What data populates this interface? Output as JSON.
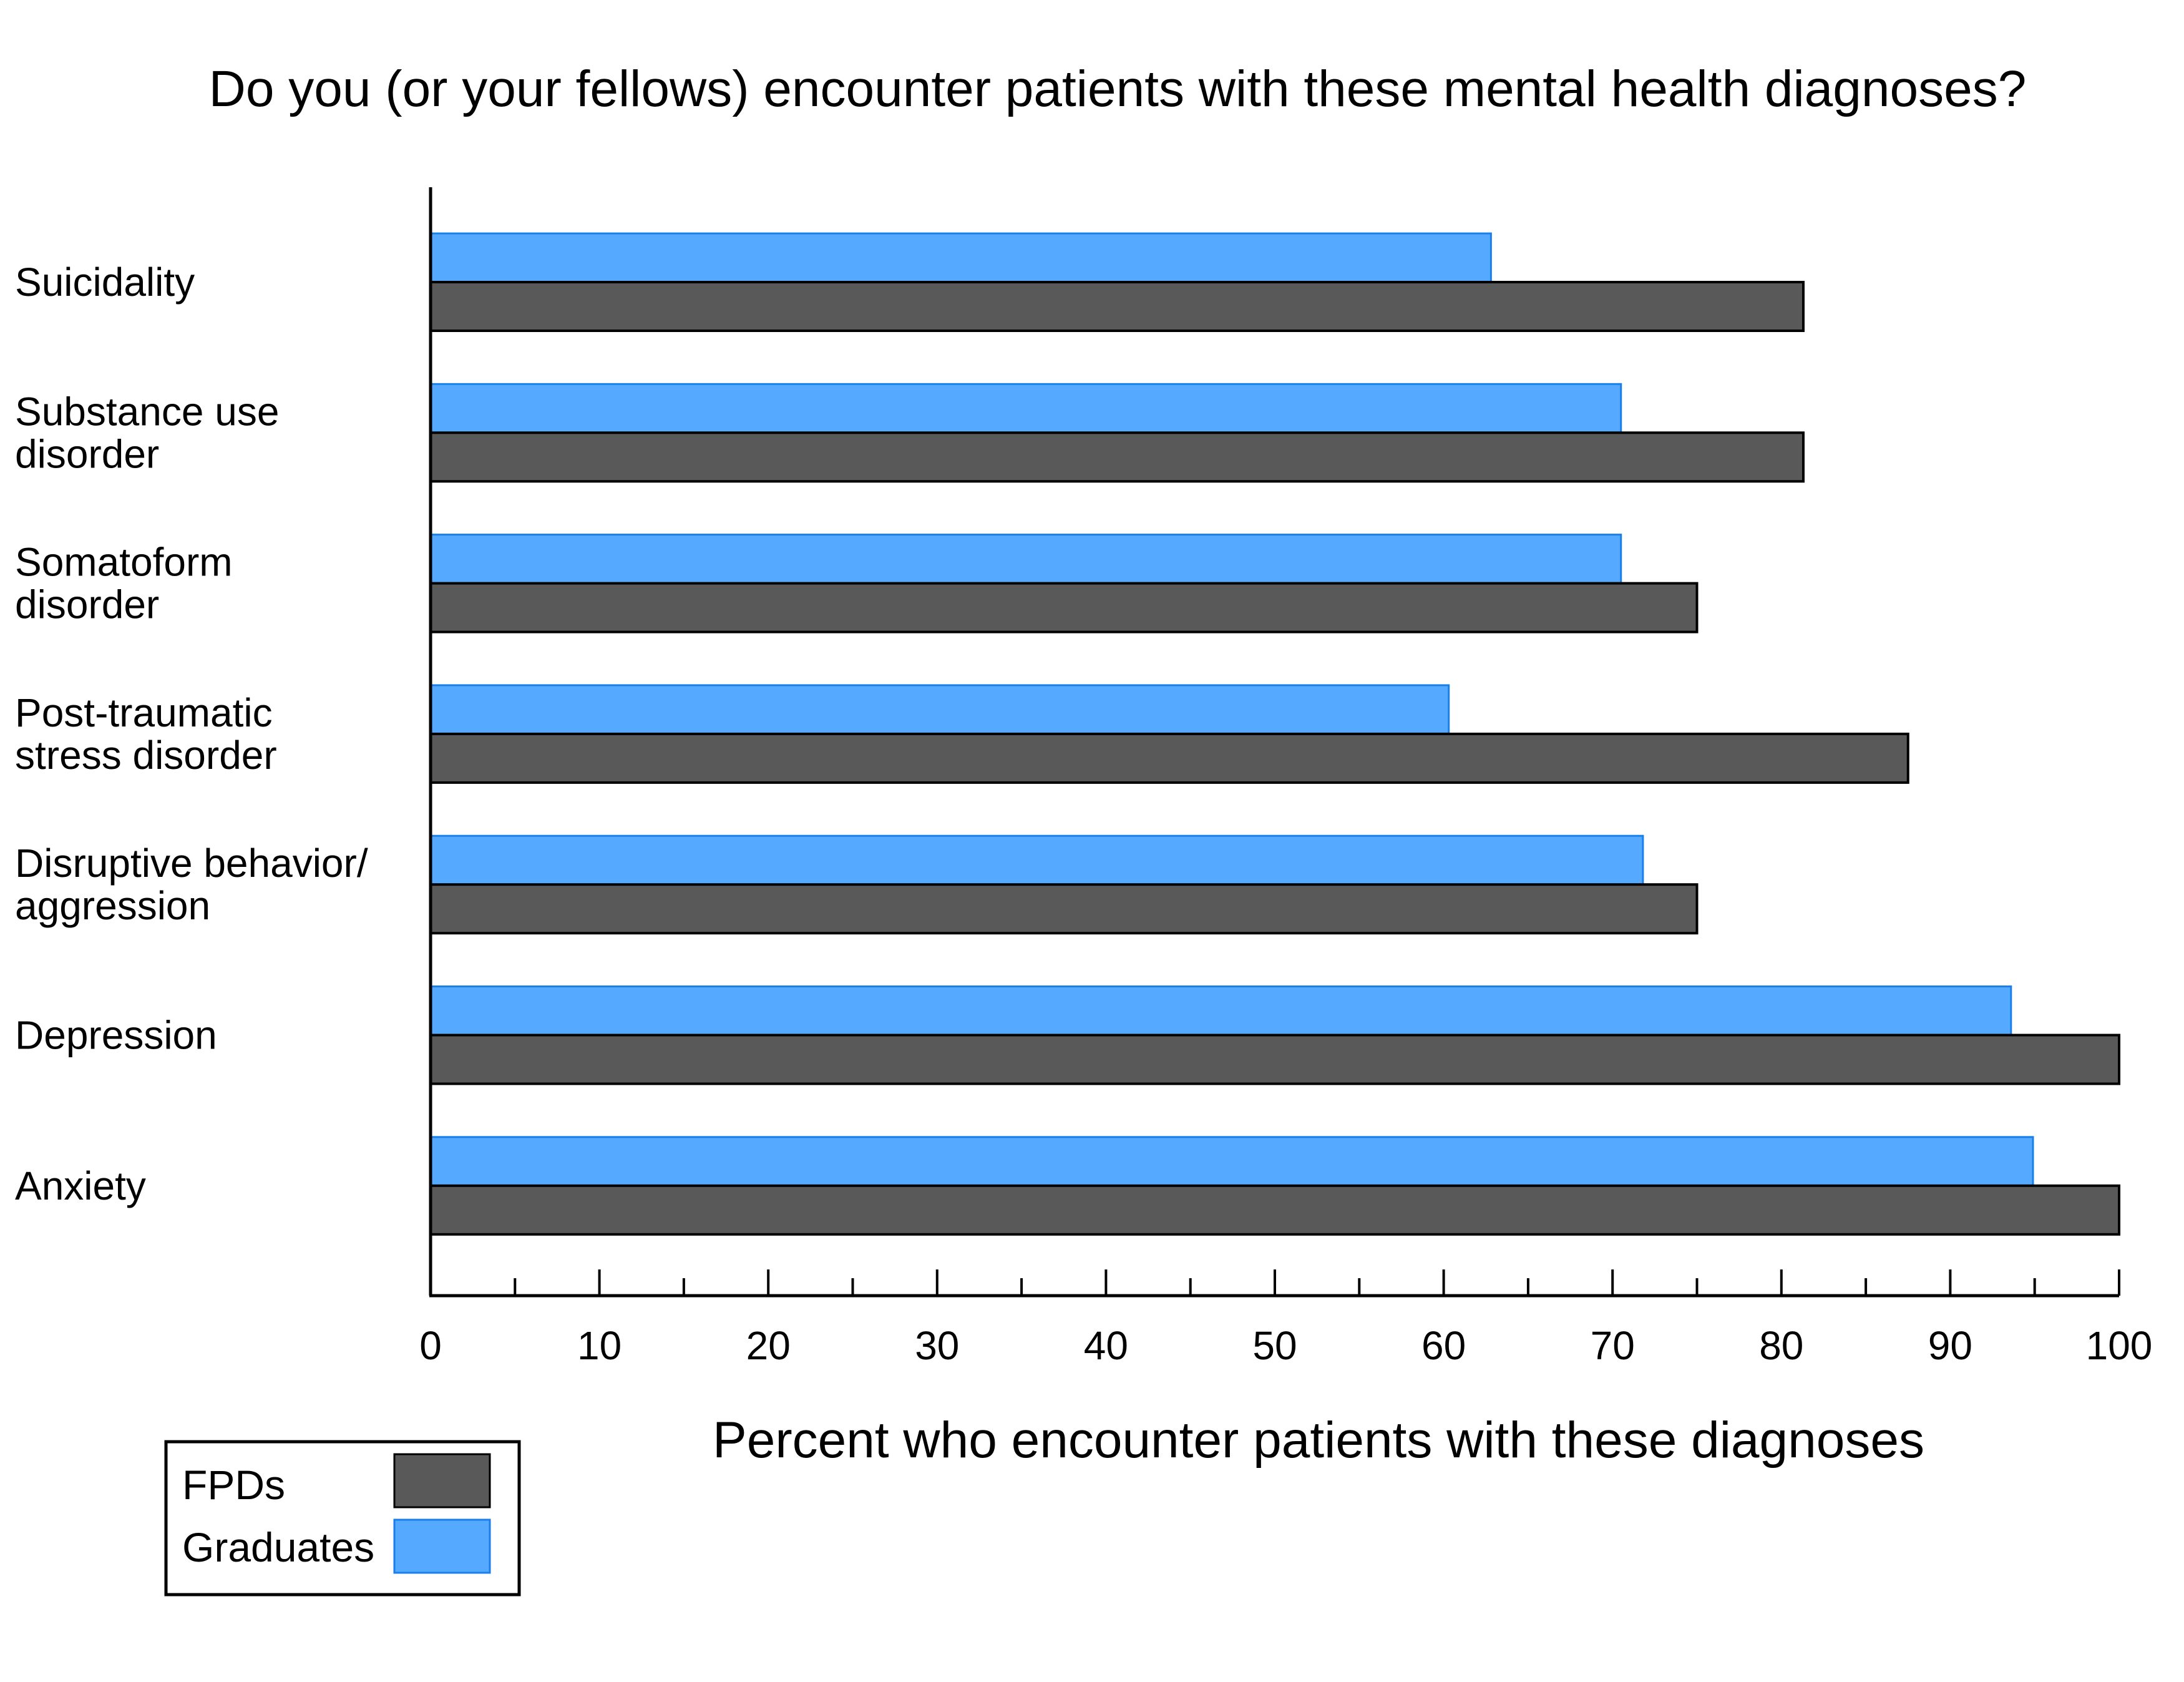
{
  "chart_data": {
    "type": "bar",
    "orientation": "horizontal",
    "title": "Do you (or your fellows) encounter patients with these mental health diagnoses?",
    "xlabel": "Percent who encounter patients with these diagnoses",
    "ylabel": "",
    "xlim": [
      0,
      100
    ],
    "x_ticks": [
      "0",
      "10",
      "20",
      "30",
      "40",
      "50",
      "60",
      "70",
      "80",
      "90",
      "100"
    ],
    "minor_tick_step": 5,
    "grid": false,
    "categories": [
      [
        "Suicidality"
      ],
      [
        "Substance use",
        "disorder"
      ],
      [
        "Somatoform",
        "disorder"
      ],
      [
        "Post-traumatic",
        "stress disorder"
      ],
      [
        "Disruptive behavior/",
        "aggression"
      ],
      [
        "Depression"
      ],
      [
        "Anxiety"
      ]
    ],
    "series": [
      {
        "name": "Graduates",
        "color": "#55aaff",
        "stroke": "#1a7fe8",
        "values": [
          62.8,
          70.5,
          70.5,
          60.3,
          71.8,
          93.6,
          94.9
        ]
      },
      {
        "name": "FPDs",
        "color": "#595959",
        "stroke": "#000000",
        "values": [
          81.3,
          81.3,
          75.0,
          87.5,
          75.0,
          100,
          100
        ]
      }
    ],
    "legend": {
      "position": "bottom-left",
      "entries": [
        "FPDs",
        "Graduates"
      ]
    }
  }
}
